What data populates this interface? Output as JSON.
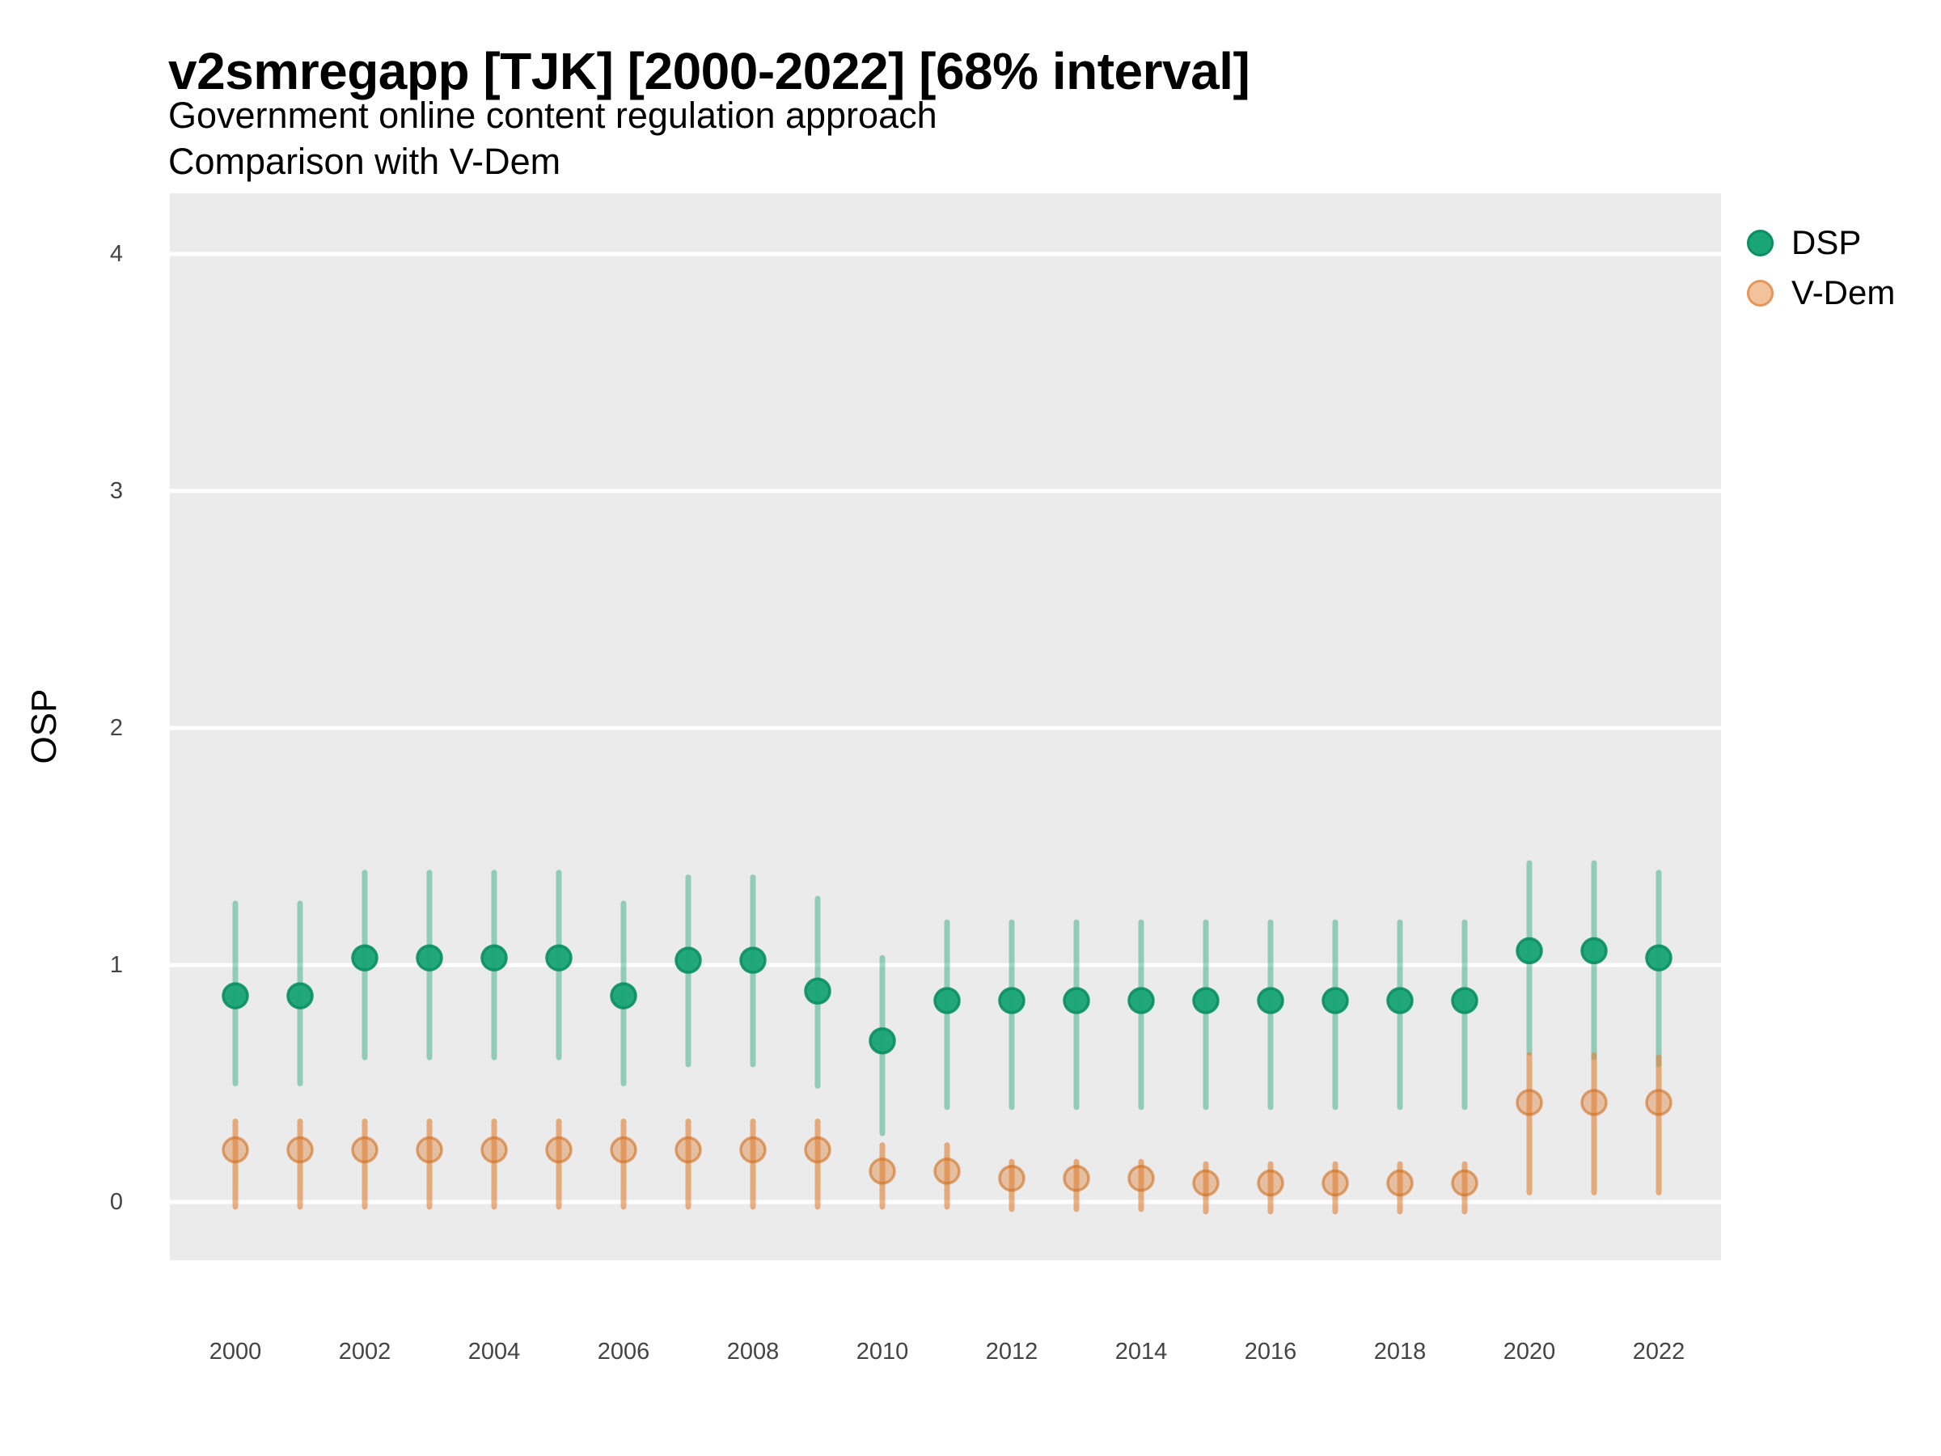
{
  "header": {
    "title": "v2smregapp [TJK] [2000-2022] [68% interval]",
    "subtitle1": "Government online content regulation approach",
    "subtitle2": "Comparison with V-Dem"
  },
  "axes": {
    "y_label": "OSP",
    "y_ticks": [
      0,
      1,
      2,
      3,
      4
    ],
    "x_ticks": [
      2000,
      2002,
      2004,
      2006,
      2008,
      2010,
      2012,
      2014,
      2016,
      2018,
      2020,
      2022
    ]
  },
  "legend": {
    "items": [
      {
        "label": "DSP",
        "color": "#1aa577"
      },
      {
        "label": "V-Dem",
        "color": "#e08239"
      }
    ]
  },
  "colors": {
    "panel_bg": "#ebebeb",
    "grid": "#ffffff",
    "tick_text": "#444444",
    "title_text": "#000000",
    "dsp": "#17a374",
    "dsp_dark": "#0b8f62",
    "vdem": "#e08239",
    "vdem_dark": "#cf6f22"
  },
  "chart_data": {
    "type": "scatter",
    "subtype": "pointrange",
    "title": "v2smregapp [TJK] [2000-2022] [68% interval]",
    "subtitle": [
      "Government online content regulation approach",
      "Comparison with V-Dem"
    ],
    "xlabel": "",
    "ylabel": "OSP",
    "ylim": [
      -0.25,
      4.25
    ],
    "grid": "horizontal-major-only",
    "legend_position": "right",
    "interval": "68%",
    "years": [
      2000,
      2001,
      2002,
      2003,
      2004,
      2005,
      2006,
      2007,
      2008,
      2009,
      2010,
      2011,
      2012,
      2013,
      2014,
      2015,
      2016,
      2017,
      2018,
      2019,
      2020,
      2021,
      2022
    ],
    "series": [
      {
        "name": "DSP",
        "color": "#17a374",
        "est": [
          0.87,
          0.87,
          1.03,
          1.03,
          1.03,
          1.03,
          0.87,
          1.02,
          1.02,
          0.89,
          0.68,
          0.85,
          0.85,
          0.85,
          0.85,
          0.85,
          0.85,
          0.85,
          0.85,
          0.85,
          1.06,
          1.06,
          1.03
        ],
        "low": [
          0.5,
          0.5,
          0.61,
          0.61,
          0.61,
          0.61,
          0.5,
          0.58,
          0.58,
          0.49,
          0.29,
          0.4,
          0.4,
          0.4,
          0.4,
          0.4,
          0.4,
          0.4,
          0.4,
          0.4,
          0.63,
          0.61,
          0.58
        ],
        "high": [
          1.26,
          1.26,
          1.39,
          1.39,
          1.39,
          1.39,
          1.26,
          1.37,
          1.37,
          1.28,
          1.03,
          1.18,
          1.18,
          1.18,
          1.18,
          1.18,
          1.18,
          1.18,
          1.18,
          1.18,
          1.43,
          1.43,
          1.39
        ]
      },
      {
        "name": "V-Dem",
        "color": "#e08239",
        "est": [
          0.22,
          0.22,
          0.22,
          0.22,
          0.22,
          0.22,
          0.22,
          0.22,
          0.22,
          0.22,
          0.13,
          0.13,
          0.1,
          0.1,
          0.1,
          0.08,
          0.08,
          0.08,
          0.08,
          0.08,
          0.42,
          0.42,
          0.42
        ],
        "low": [
          -0.02,
          -0.02,
          -0.02,
          -0.02,
          -0.02,
          -0.02,
          -0.02,
          -0.02,
          -0.02,
          -0.02,
          -0.02,
          -0.02,
          -0.03,
          -0.03,
          -0.03,
          -0.04,
          -0.04,
          -0.04,
          -0.04,
          -0.04,
          0.04,
          0.04,
          0.04
        ],
        "high": [
          0.34,
          0.34,
          0.34,
          0.34,
          0.34,
          0.34,
          0.34,
          0.34,
          0.34,
          0.34,
          0.24,
          0.24,
          0.17,
          0.17,
          0.17,
          0.16,
          0.16,
          0.16,
          0.16,
          0.16,
          0.62,
          0.62,
          0.61
        ]
      }
    ]
  }
}
